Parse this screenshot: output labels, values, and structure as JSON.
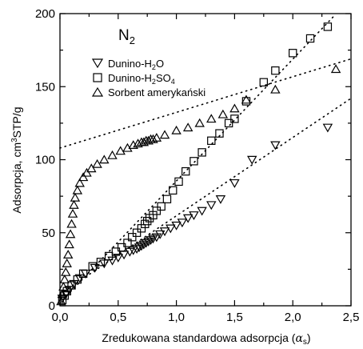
{
  "chart_data": {
    "type": "scatter",
    "xlabel_main": "Zredukowana standardowa adsorpcja (",
    "xlabel_alpha": "α",
    "xlabel_sub": "s",
    "xlabel_close": ")",
    "ylabel_main": "Adsorpcja, cm",
    "ylabel_sup": "3",
    "ylabel_rest": "STP/g",
    "xlim": [
      0,
      2.5
    ],
    "ylim": [
      0,
      200
    ],
    "xticks": [
      0.0,
      0.5,
      1.0,
      1.5,
      2.0,
      2.5
    ],
    "xtick_labels": [
      "0,0",
      "0,5",
      "1,0",
      "1,5",
      "2,0",
      "2,5"
    ],
    "yticks": [
      0,
      50,
      100,
      150,
      200
    ],
    "ytick_labels": [
      "0",
      "50",
      "100",
      "150",
      "200"
    ],
    "annotation": {
      "main": "N",
      "sub": "2"
    },
    "legend_position": "top-left",
    "series": [
      {
        "name_main": "Dunino-H",
        "name_sub": "2",
        "name_rest": "O",
        "marker": "triangle-down",
        "points": [
          [
            0.02,
            5
          ],
          [
            0.05,
            8
          ],
          [
            0.08,
            11
          ],
          [
            0.12,
            15
          ],
          [
            0.17,
            19
          ],
          [
            0.22,
            22
          ],
          [
            0.3,
            26
          ],
          [
            0.38,
            29
          ],
          [
            0.45,
            31
          ],
          [
            0.5,
            33
          ],
          [
            0.55,
            35
          ],
          [
            0.6,
            37
          ],
          [
            0.63,
            38
          ],
          [
            0.66,
            39
          ],
          [
            0.68,
            40
          ],
          [
            0.7,
            41
          ],
          [
            0.72,
            42
          ],
          [
            0.74,
            43
          ],
          [
            0.76,
            44
          ],
          [
            0.78,
            45
          ],
          [
            0.8,
            46
          ],
          [
            0.83,
            47
          ],
          [
            0.86,
            49
          ],
          [
            0.9,
            51
          ],
          [
            0.95,
            53
          ],
          [
            1.0,
            55
          ],
          [
            1.05,
            57
          ],
          [
            1.1,
            60
          ],
          [
            1.15,
            62
          ],
          [
            1.22,
            65
          ],
          [
            1.3,
            69
          ],
          [
            1.38,
            73
          ],
          [
            1.5,
            84
          ],
          [
            1.65,
            100
          ],
          [
            1.85,
            110
          ],
          [
            2.3,
            122
          ]
        ],
        "fit": {
          "x": [
            0.0,
            2.5
          ],
          "y": [
            8,
            142
          ]
        }
      },
      {
        "name_main": "Dunino-H",
        "name_sub": "2",
        "name_rest": "SO",
        "name_sub2": "4",
        "marker": "square",
        "points": [
          [
            0.02,
            4
          ],
          [
            0.04,
            7
          ],
          [
            0.06,
            10
          ],
          [
            0.1,
            14
          ],
          [
            0.15,
            18
          ],
          [
            0.2,
            22
          ],
          [
            0.28,
            27
          ],
          [
            0.35,
            30
          ],
          [
            0.42,
            34
          ],
          [
            0.48,
            37
          ],
          [
            0.53,
            40
          ],
          [
            0.58,
            43
          ],
          [
            0.62,
            47
          ],
          [
            0.66,
            50
          ],
          [
            0.7,
            53
          ],
          [
            0.73,
            56
          ],
          [
            0.75,
            58
          ],
          [
            0.77,
            60
          ],
          [
            0.8,
            62
          ],
          [
            0.83,
            65
          ],
          [
            0.87,
            68
          ],
          [
            0.92,
            73
          ],
          [
            0.97,
            79
          ],
          [
            1.02,
            85
          ],
          [
            1.08,
            92
          ],
          [
            1.15,
            99
          ],
          [
            1.22,
            105
          ],
          [
            1.3,
            113
          ],
          [
            1.37,
            118
          ],
          [
            1.45,
            125
          ],
          [
            1.5,
            128
          ],
          [
            1.6,
            140
          ],
          [
            1.75,
            153
          ],
          [
            1.85,
            161
          ],
          [
            2.0,
            173
          ],
          [
            2.15,
            183
          ],
          [
            2.3,
            191
          ]
        ],
        "fit": {
          "x": [
            0.0,
            2.35
          ],
          "y": [
            2,
            198
          ]
        }
      },
      {
        "name": "Sorbent amerykański",
        "marker": "triangle-up",
        "points": [
          [
            0.01,
            3
          ],
          [
            0.02,
            8
          ],
          [
            0.03,
            13
          ],
          [
            0.04,
            18
          ],
          [
            0.05,
            23
          ],
          [
            0.06,
            29
          ],
          [
            0.07,
            35
          ],
          [
            0.08,
            42
          ],
          [
            0.09,
            49
          ],
          [
            0.1,
            56
          ],
          [
            0.11,
            63
          ],
          [
            0.12,
            69
          ],
          [
            0.13,
            74
          ],
          [
            0.15,
            79
          ],
          [
            0.17,
            84
          ],
          [
            0.2,
            88
          ],
          [
            0.23,
            91
          ],
          [
            0.27,
            94
          ],
          [
            0.32,
            97
          ],
          [
            0.38,
            100
          ],
          [
            0.45,
            103
          ],
          [
            0.52,
            106
          ],
          [
            0.58,
            108
          ],
          [
            0.63,
            110
          ],
          [
            0.67,
            111
          ],
          [
            0.7,
            112
          ],
          [
            0.72,
            112
          ],
          [
            0.74,
            113
          ],
          [
            0.76,
            113
          ],
          [
            0.78,
            114
          ],
          [
            0.8,
            114
          ],
          [
            0.83,
            115
          ],
          [
            0.9,
            117
          ],
          [
            1.0,
            120
          ],
          [
            1.1,
            122
          ],
          [
            1.2,
            125
          ],
          [
            1.3,
            128
          ],
          [
            1.4,
            131
          ],
          [
            1.5,
            135
          ],
          [
            1.6,
            141
          ],
          [
            1.85,
            148
          ],
          [
            2.37,
            162
          ]
        ],
        "fit": {
          "x": [
            0.0,
            2.5
          ],
          "y": [
            108,
            169
          ]
        }
      }
    ]
  }
}
